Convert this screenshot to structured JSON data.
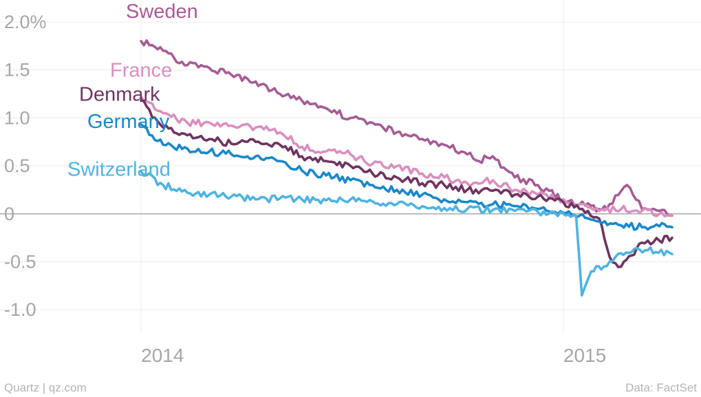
{
  "chart_data": {
    "type": "line",
    "title": "",
    "xlabel": "",
    "ylabel": "",
    "y_unit": "%",
    "ylim": [
      -1.25,
      2.05
    ],
    "xlim": [
      "2013-09-01",
      "2015-04-30"
    ],
    "grid": true,
    "y_ticks": [
      {
        "value": 2.0,
        "label": "2.0%"
      },
      {
        "value": 1.5,
        "label": "1.5"
      },
      {
        "value": 1.0,
        "label": "1.0"
      },
      {
        "value": 0.5,
        "label": "0.5"
      },
      {
        "value": 0,
        "label": "0"
      },
      {
        "value": -0.5,
        "label": "-0.5"
      },
      {
        "value": -1.0,
        "label": "-1.0"
      }
    ],
    "x_ticks": [
      {
        "value": "2014-01-01",
        "label": "2014"
      },
      {
        "value": "2015-01-01",
        "label": "2015"
      }
    ],
    "series": [
      {
        "name": "Sweden",
        "color": "#a65c95",
        "x": [
          "2014-01-01",
          "2014-01-20",
          "2014-02-10",
          "2014-03-01",
          "2014-03-20",
          "2014-04-10",
          "2014-05-01",
          "2014-05-20",
          "2014-06-10",
          "2014-07-01",
          "2014-07-20",
          "2014-08-10",
          "2014-09-01",
          "2014-09-20",
          "2014-10-10",
          "2014-10-20",
          "2014-11-01",
          "2014-11-20",
          "2014-12-10",
          "2015-01-01",
          "2015-01-15",
          "2015-02-01",
          "2015-02-10",
          "2015-02-25",
          "2015-03-10",
          "2015-03-25",
          "2015-04-05"
        ],
        "values": [
          1.8,
          1.7,
          1.55,
          1.52,
          1.45,
          1.38,
          1.25,
          1.18,
          1.1,
          1.0,
          0.95,
          0.85,
          0.78,
          0.72,
          0.62,
          0.55,
          0.6,
          0.38,
          0.3,
          0.15,
          0.1,
          0.05,
          0.1,
          0.3,
          0.05,
          0.03,
          -0.02
        ]
      },
      {
        "name": "France",
        "color": "#d98fbf",
        "x": [
          "2014-01-01",
          "2014-01-20",
          "2014-02-10",
          "2014-03-01",
          "2014-03-20",
          "2014-04-10",
          "2014-05-01",
          "2014-05-20",
          "2014-06-10",
          "2014-07-01",
          "2014-07-20",
          "2014-08-10",
          "2014-09-01",
          "2014-09-20",
          "2014-10-10",
          "2014-11-01",
          "2014-11-20",
          "2014-12-10",
          "2015-01-01",
          "2015-01-15",
          "2015-02-01",
          "2015-02-20",
          "2015-03-10",
          "2015-03-25",
          "2015-04-05"
        ],
        "values": [
          1.22,
          1.05,
          0.95,
          0.95,
          0.92,
          0.9,
          0.85,
          0.7,
          0.65,
          0.62,
          0.52,
          0.5,
          0.42,
          0.38,
          0.32,
          0.35,
          0.25,
          0.2,
          0.15,
          0.1,
          0.03,
          0.05,
          0.03,
          0.0,
          -0.02
        ]
      },
      {
        "name": "Denmark",
        "color": "#6e3460",
        "x": [
          "2014-01-01",
          "2014-01-20",
          "2014-02-10",
          "2014-03-01",
          "2014-03-20",
          "2014-04-10",
          "2014-05-01",
          "2014-05-20",
          "2014-06-10",
          "2014-07-01",
          "2014-07-20",
          "2014-08-10",
          "2014-09-01",
          "2014-09-20",
          "2014-10-10",
          "2014-11-01",
          "2014-11-20",
          "2014-12-10",
          "2015-01-01",
          "2015-01-15",
          "2015-02-01",
          "2015-02-10",
          "2015-02-20",
          "2015-03-10",
          "2015-03-25",
          "2015-04-05"
        ],
        "values": [
          1.18,
          0.9,
          0.82,
          0.78,
          0.73,
          0.75,
          0.72,
          0.6,
          0.55,
          0.5,
          0.42,
          0.38,
          0.32,
          0.3,
          0.25,
          0.24,
          0.2,
          0.18,
          0.12,
          0.05,
          -0.05,
          -0.45,
          -0.55,
          -0.3,
          -0.28,
          -0.25
        ]
      },
      {
        "name": "Germany",
        "color": "#1a87c9",
        "x": [
          "2014-01-01",
          "2014-01-20",
          "2014-02-10",
          "2014-03-01",
          "2014-03-20",
          "2014-04-10",
          "2014-05-01",
          "2014-05-20",
          "2014-06-10",
          "2014-07-01",
          "2014-07-20",
          "2014-08-10",
          "2014-09-01",
          "2014-09-20",
          "2014-10-10",
          "2014-11-01",
          "2014-11-20",
          "2014-12-10",
          "2015-01-01",
          "2015-01-15",
          "2015-02-01",
          "2015-02-20",
          "2015-03-10",
          "2015-03-25",
          "2015-04-05"
        ],
        "values": [
          0.93,
          0.72,
          0.68,
          0.65,
          0.62,
          0.6,
          0.55,
          0.45,
          0.4,
          0.35,
          0.3,
          0.25,
          0.2,
          0.15,
          0.12,
          0.1,
          0.08,
          0.05,
          0.01,
          -0.02,
          -0.08,
          -0.12,
          -0.14,
          -0.13,
          -0.14
        ]
      },
      {
        "name": "Switzerland",
        "color": "#4fb3e0",
        "x": [
          "2014-01-01",
          "2014-01-20",
          "2014-02-10",
          "2014-03-01",
          "2014-03-20",
          "2014-04-10",
          "2014-05-01",
          "2014-05-20",
          "2014-06-10",
          "2014-07-01",
          "2014-07-20",
          "2014-08-10",
          "2014-09-01",
          "2014-09-20",
          "2014-10-10",
          "2014-11-01",
          "2014-11-20",
          "2014-12-10",
          "2015-01-01",
          "2015-01-12",
          "2015-01-17",
          "2015-01-25",
          "2015-02-05",
          "2015-02-15",
          "2015-03-01",
          "2015-03-15",
          "2015-04-05"
        ],
        "values": [
          0.44,
          0.3,
          0.22,
          0.2,
          0.18,
          0.15,
          0.16,
          0.15,
          0.14,
          0.15,
          0.13,
          0.1,
          0.08,
          0.06,
          0.05,
          0.04,
          0.03,
          0.02,
          0.0,
          -0.02,
          -0.85,
          -0.6,
          -0.55,
          -0.45,
          -0.4,
          -0.38,
          -0.42
        ]
      }
    ]
  },
  "footer": {
    "source_left": "Quartz | qz.com",
    "source_right": "Data: FactSet"
  }
}
